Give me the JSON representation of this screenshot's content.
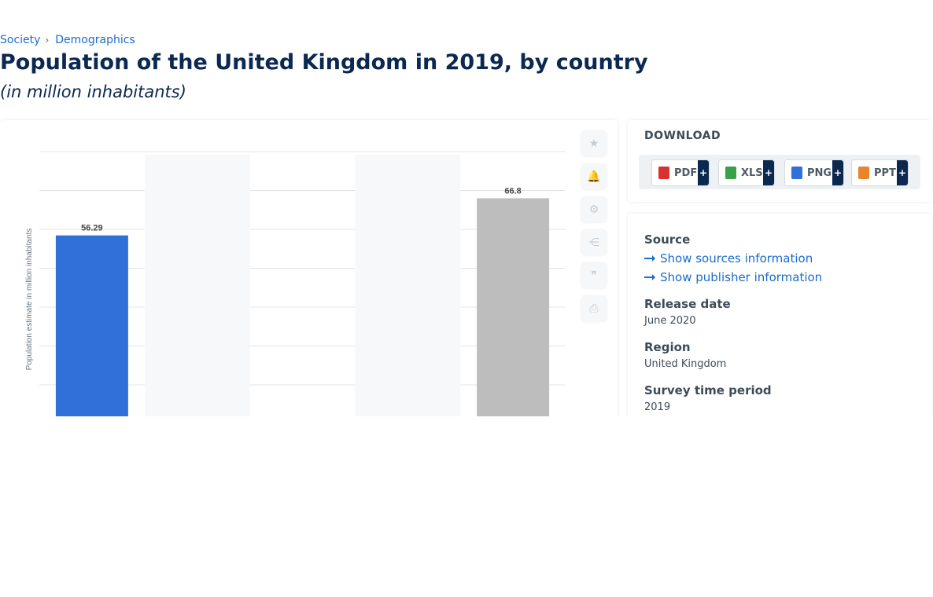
{
  "breadcrumb": [
    "Society",
    "Demographics"
  ],
  "title": "Population of the United Kingdom in 2019, by country",
  "subtitle": "(in million inhabitants)",
  "chart": {
    "ylabel": "Population estimate in million inhabitants",
    "value_labels": [
      "56.29",
      "66.8"
    ]
  },
  "chart_data": {
    "type": "bar",
    "categories": [
      "",
      "",
      "",
      "",
      ""
    ],
    "values": [
      56.29,
      null,
      null,
      null,
      66.8
    ],
    "bar_colors": [
      "#2f70d9",
      null,
      null,
      null,
      "#bdbdbd"
    ],
    "ylabel": "Population estimate in million inhabitants",
    "grid": true
  },
  "tools": [
    {
      "icon": "star-icon",
      "glyph": "★"
    },
    {
      "icon": "bell-icon",
      "glyph": "🔔"
    },
    {
      "icon": "gear-icon",
      "glyph": "⚙"
    },
    {
      "icon": "share-icon",
      "glyph": "⋲"
    },
    {
      "icon": "quote-icon",
      "glyph": "❞"
    },
    {
      "icon": "print-icon",
      "glyph": "⎙"
    }
  ],
  "download": {
    "title": "DOWNLOAD",
    "buttons": [
      {
        "label": "PDF",
        "plus": "+",
        "icon": "pdf-file-icon",
        "color": "#d93030"
      },
      {
        "label": "XLS",
        "plus": "+",
        "icon": "xls-file-icon",
        "color": "#3aa04a"
      },
      {
        "label": "PNG",
        "plus": "+",
        "icon": "png-file-icon",
        "color": "#2f70d9"
      },
      {
        "label": "PPT",
        "plus": "+",
        "icon": "ppt-file-icon",
        "color": "#e8852a"
      }
    ]
  },
  "info": {
    "source_label": "Source",
    "show_sources": "Show sources information",
    "show_publisher": "Show publisher information",
    "release_label": "Release date",
    "release_value": "June 2020",
    "region_label": "Region",
    "region_value": "United Kingdom",
    "period_label": "Survey time period",
    "period_value": "2019"
  },
  "colors": {
    "accent": "#1a6ccc",
    "title": "#0b2850"
  }
}
